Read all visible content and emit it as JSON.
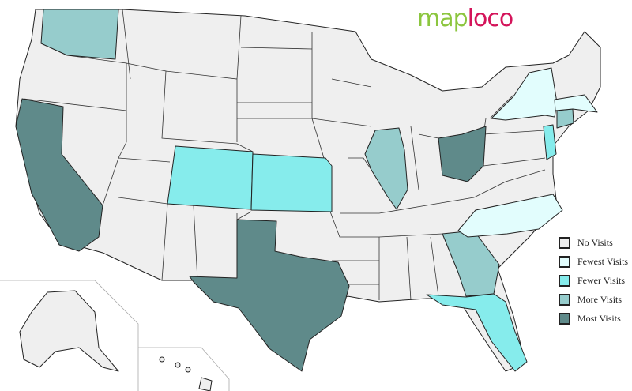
{
  "logo": {
    "part1": "map",
    "part2": "loco"
  },
  "legend": [
    {
      "label": "No Visits",
      "color": "#efefef"
    },
    {
      "label": "Fewest Visits",
      "color": "#e2fdfd"
    },
    {
      "label": "Fewer Visits",
      "color": "#86ecec"
    },
    {
      "label": "More Visits",
      "color": "#96cccc"
    },
    {
      "label": "Most Visits",
      "color": "#5f8a8a"
    }
  ],
  "states": {
    "Washington": "More Visits",
    "California": "Most Visits",
    "Colorado": "Fewer Visits",
    "Kansas": "Fewer Visits",
    "Texas": "Most Visits",
    "Illinois": "More Visits",
    "Ohio": "Most Visits",
    "Georgia": "More Visits",
    "Florida": "Fewer Visits",
    "North Carolina": "Fewest Visits",
    "New York": "Fewest Visits",
    "New Jersey": "Fewer Visits",
    "Connecticut": "More Visits",
    "Massachusetts": "Fewest Visits"
  }
}
